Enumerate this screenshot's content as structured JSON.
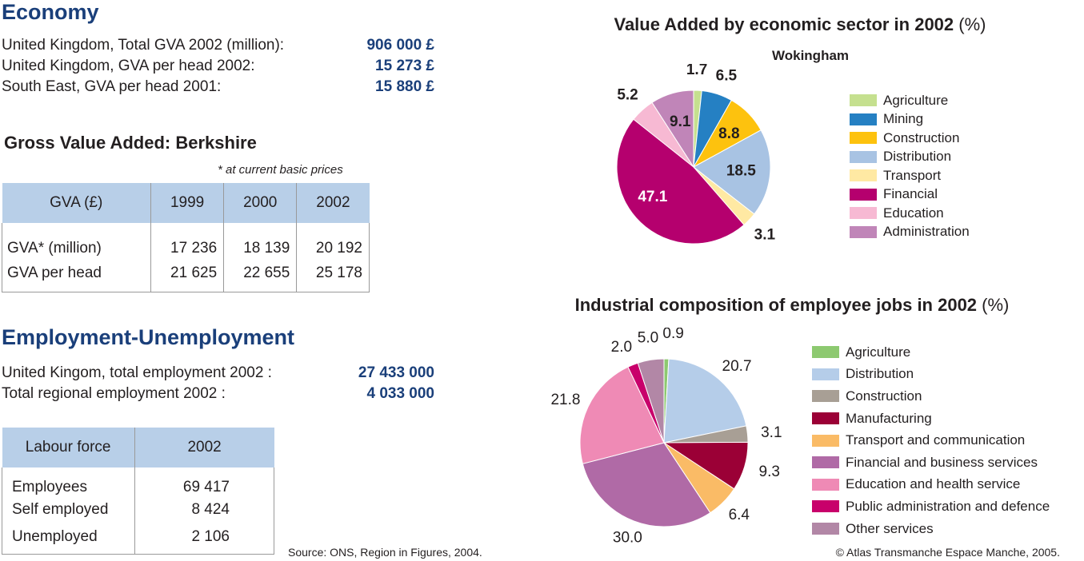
{
  "economy": {
    "title": "Economy",
    "rows": [
      {
        "label": "United Kingdom, Total GVA 2002 (million):",
        "value": "906 000 £"
      },
      {
        "label": "United Kingdom, GVA per head 2002:",
        "value": "15 273 £"
      },
      {
        "label": "South East, GVA per head 2001:",
        "value": "15 880 £"
      }
    ]
  },
  "gva": {
    "title": "Gross Value Added: Berkshire",
    "note": "* at current basic prices",
    "headers": [
      "GVA (£)",
      "1999",
      "2000",
      "2002"
    ],
    "rows": [
      [
        "GVA* (million)",
        "17 236",
        "18 139",
        "20 192"
      ],
      [
        "GVA per head",
        "21 625",
        "22 655",
        "25 178"
      ]
    ]
  },
  "employment": {
    "title": "Employment-Unemployment",
    "rows": [
      {
        "label": "United Kingom, total employment 2002 :",
        "value": "27 433 000"
      },
      {
        "label": "Total regional employment 2002 :",
        "value": "4 033 000"
      }
    ]
  },
  "labour": {
    "headers": [
      "Labour force",
      "2002"
    ],
    "rows": [
      [
        "Employees",
        "69 417"
      ],
      [
        "Self employed",
        "8 424"
      ],
      [
        "Unemployed",
        "2 106"
      ]
    ]
  },
  "source": "Source: ONS, Region in Figures, 2004.",
  "copyright": "© Atlas Transmanche Espace Manche, 2005.",
  "chart_data": [
    {
      "type": "pie",
      "title": "Value Added by economic sector in 2002",
      "title_unit": "(%)",
      "subtitle": "Wokingham",
      "legend_position": "right",
      "categories": [
        "Agriculture",
        "Mining",
        "Construction",
        "Distribution",
        "Transport",
        "Financial",
        "Education",
        "Administration"
      ],
      "values": [
        1.7,
        6.5,
        8.8,
        18.5,
        3.1,
        47.1,
        5.2,
        9.1
      ],
      "labels": [
        "1.7",
        "6.5",
        "8.8",
        "18.5",
        "3.1",
        "47.1",
        "5.2",
        "9.1"
      ],
      "colors": [
        "#c5e08f",
        "#2580c3",
        "#fdc20e",
        "#a8c3e3",
        "#ffe9a3",
        "#b5006e",
        "#f7b9d3",
        "#c085b8"
      ]
    },
    {
      "type": "pie",
      "title": "Industrial composition of employee jobs in 2002",
      "title_unit": "(%)",
      "legend_position": "right",
      "categories": [
        "Agriculture",
        "Distribution",
        "Construction",
        "Manufacturing",
        "Transport and communication",
        "Financial and business services",
        "Education and health service",
        "Public administration and defence",
        "Other services"
      ],
      "values": [
        0.9,
        20.7,
        3.1,
        9.3,
        6.4,
        30.0,
        21.8,
        2.0,
        5.0
      ],
      "labels": [
        "0.9",
        "20.7",
        "3.1",
        "9.3",
        "6.4",
        "30.0",
        "21.8",
        "2.0",
        "5.0"
      ],
      "colors": [
        "#8dc970",
        "#b5cde9",
        "#a89f95",
        "#9b0036",
        "#fabb66",
        "#b06aa6",
        "#ef8ab5",
        "#c8006b",
        "#b287a6"
      ]
    }
  ]
}
